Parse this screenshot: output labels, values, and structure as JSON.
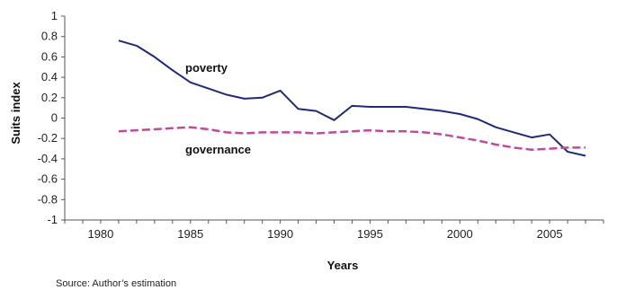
{
  "chart_data": {
    "type": "line",
    "xlabel": "Years",
    "ylabel": "Suits index",
    "xlim": [
      1978,
      2008
    ],
    "ylim": [
      -1,
      1
    ],
    "xticks": [
      "1980",
      "1985",
      "1990",
      "1995",
      "2000",
      "2005"
    ],
    "yticks": [
      "1",
      "0.8",
      "0.6",
      "0.4",
      "0.2",
      "0",
      "-0.2",
      "-0.4",
      "-0.6",
      "-0.8",
      "-1"
    ],
    "grid": false,
    "legend": "inline labels",
    "source": "Source: Author’s estimation",
    "series": [
      {
        "name": "poverty",
        "color": "#1f2a7a",
        "style": "solid",
        "x": [
          1981,
          1982,
          1983,
          1984,
          1985,
          1986,
          1987,
          1988,
          1989,
          1990,
          1991,
          1992,
          1993,
          1994,
          1995,
          1996,
          1997,
          1998,
          1999,
          2000,
          2001,
          2002,
          2003,
          2004,
          2005,
          2006,
          2007
        ],
        "y": [
          0.76,
          0.71,
          0.6,
          0.47,
          0.35,
          0.29,
          0.23,
          0.19,
          0.2,
          0.27,
          0.09,
          0.07,
          -0.02,
          0.12,
          0.11,
          0.11,
          0.11,
          0.09,
          0.07,
          0.04,
          -0.01,
          -0.09,
          -0.14,
          -0.19,
          -0.16,
          -0.33,
          -0.37
        ]
      },
      {
        "name": "governance",
        "color": "#c24a9b",
        "style": "dashed",
        "x": [
          1981,
          1982,
          1983,
          1984,
          1985,
          1986,
          1987,
          1988,
          1989,
          1990,
          1991,
          1992,
          1993,
          1994,
          1995,
          1996,
          1997,
          1998,
          1999,
          2000,
          2001,
          2002,
          2003,
          2004,
          2005,
          2006,
          2007
        ],
        "y": [
          -0.13,
          -0.12,
          -0.11,
          -0.1,
          -0.09,
          -0.11,
          -0.14,
          -0.15,
          -0.14,
          -0.14,
          -0.14,
          -0.15,
          -0.14,
          -0.13,
          -0.12,
          -0.13,
          -0.13,
          -0.14,
          -0.16,
          -0.19,
          -0.22,
          -0.26,
          -0.29,
          -0.31,
          -0.3,
          -0.29,
          -0.29
        ]
      }
    ]
  }
}
